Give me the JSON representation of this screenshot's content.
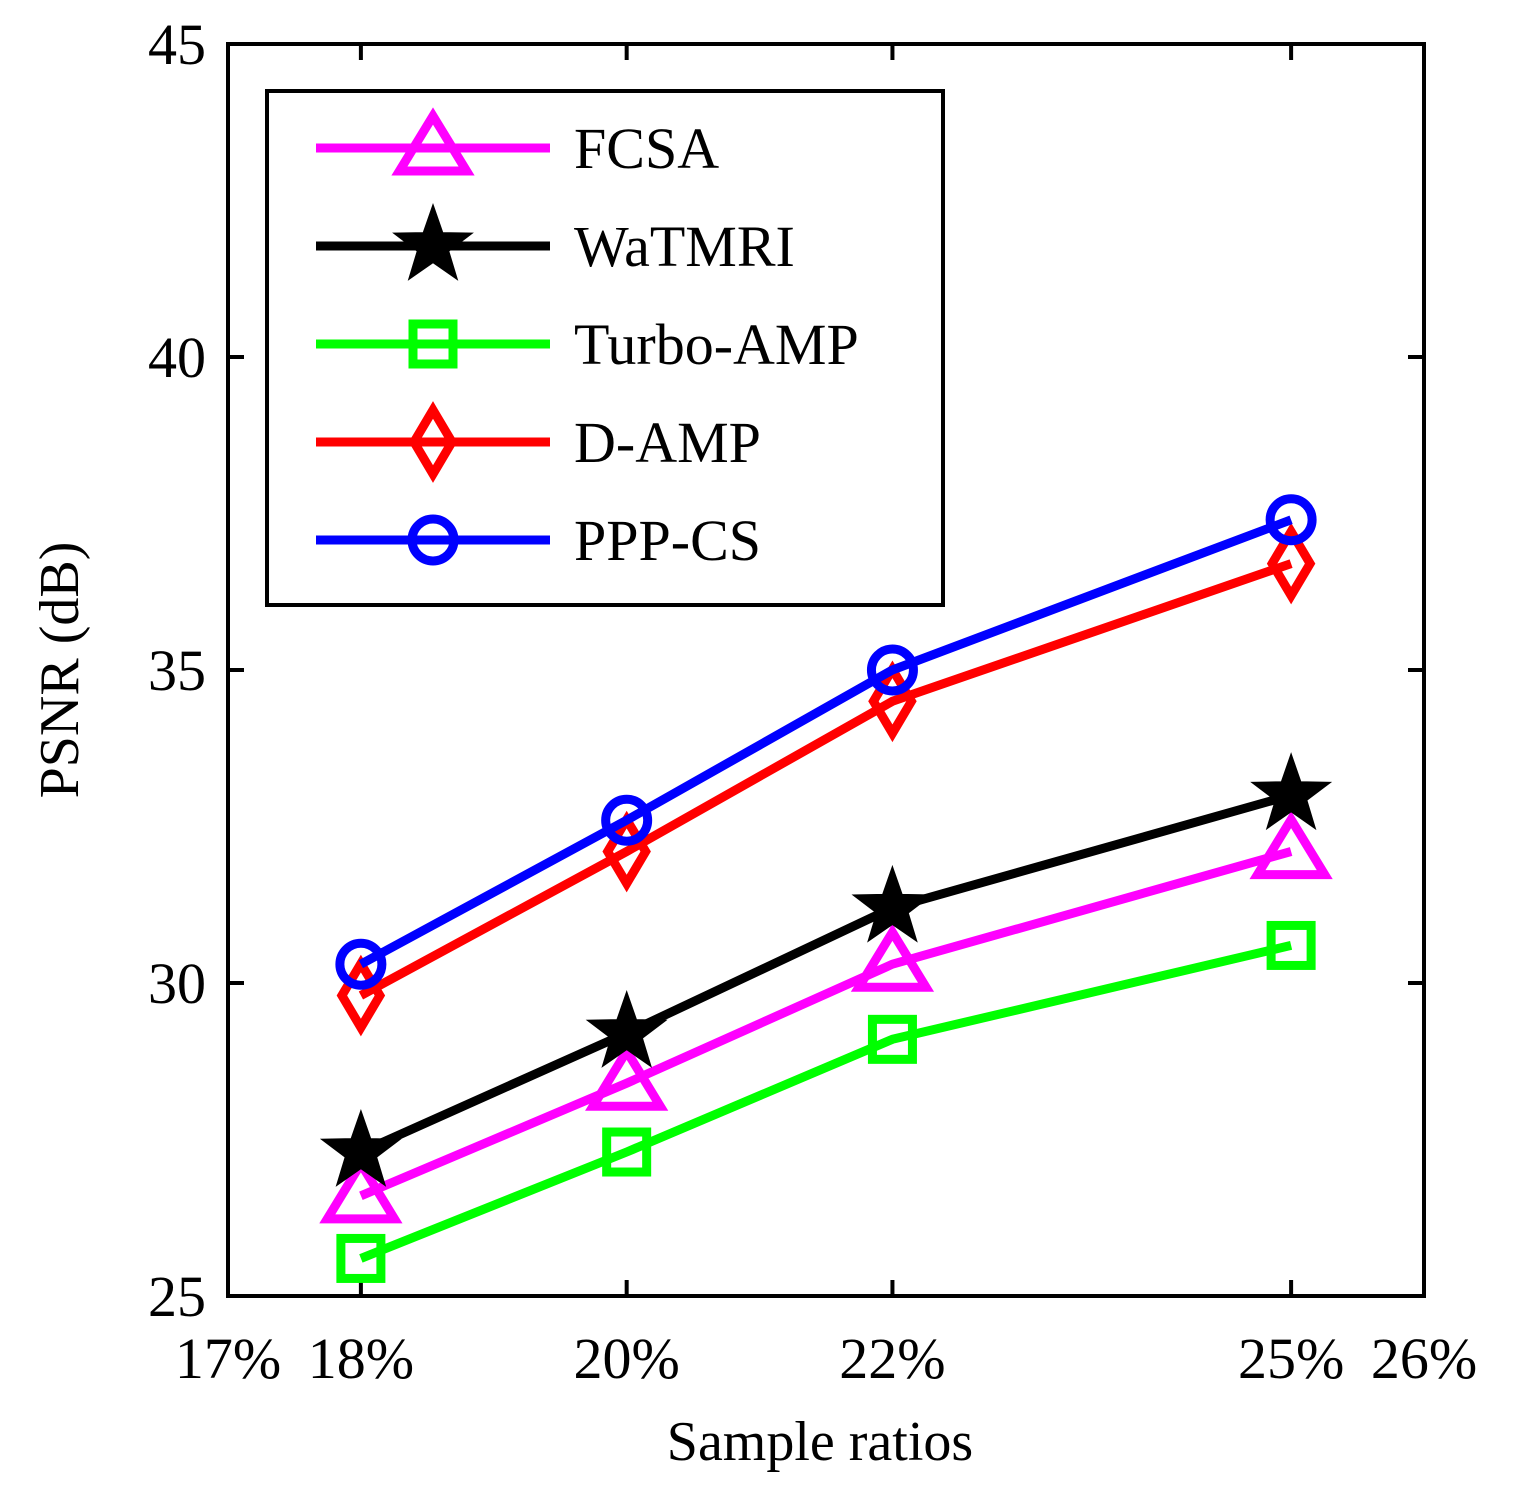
{
  "chart_data": {
    "type": "line",
    "title": "",
    "xlabel": "Sample ratios",
    "ylabel": "PSNR (dB)",
    "xlim": [
      17,
      26
    ],
    "ylim": [
      25,
      45
    ],
    "x": [
      18,
      20,
      22,
      25
    ],
    "xticks": [
      17,
      18,
      20,
      22,
      25,
      26
    ],
    "xtick_labels": [
      "17%",
      "18%",
      "20%",
      "22%",
      "25%",
      "26%"
    ],
    "yticks": [
      25,
      30,
      35,
      40,
      45
    ],
    "ytick_labels": [
      "25",
      "30",
      "35",
      "40",
      "45"
    ],
    "grid": false,
    "legend_position": "top-left",
    "series": [
      {
        "name": "FCSA",
        "color": "#ff00ff",
        "marker": "triangle",
        "values": [
          26.6,
          28.4,
          30.3,
          32.1
        ]
      },
      {
        "name": "WaTMRI",
        "color": "#000000",
        "marker": "star",
        "values": [
          27.3,
          29.2,
          31.2,
          33.0
        ]
      },
      {
        "name": "Turbo-AMP",
        "color": "#00ff00",
        "marker": "square",
        "values": [
          25.6,
          27.3,
          29.1,
          30.6
        ]
      },
      {
        "name": "D-AMP",
        "color": "#ff0000",
        "marker": "diamond",
        "values": [
          29.8,
          32.1,
          34.5,
          36.7
        ]
      },
      {
        "name": "PPP-CS",
        "color": "#0000ff",
        "marker": "circle",
        "values": [
          30.3,
          32.6,
          35.0,
          37.4
        ]
      }
    ]
  }
}
